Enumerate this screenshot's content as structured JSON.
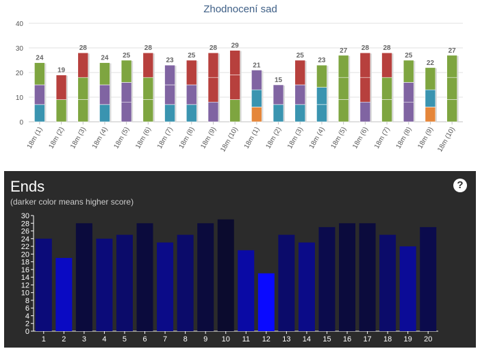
{
  "chart_data": [
    {
      "type": "bar",
      "stacked": true,
      "title": "Zhodnocení sad",
      "ylim": [
        0,
        40
      ],
      "yticks": [
        0,
        10,
        20,
        30,
        40
      ],
      "grid": true,
      "categories": [
        "18m (1)",
        "18m (2)",
        "18m (3)",
        "18m (4)",
        "18m (5)",
        "18m (6)",
        "18m (7)",
        "18m (8)",
        "18m (9)",
        "18m (10)",
        "18m (1)",
        "18m (2)",
        "18m (3)",
        "18m (4)",
        "18m (5)",
        "18m (6)",
        "18m (7)",
        "18m (8)",
        "18m (9)",
        "18m (10)"
      ],
      "totals": [
        24,
        19,
        28,
        24,
        25,
        28,
        23,
        25,
        28,
        29,
        21,
        15,
        25,
        23,
        27,
        28,
        28,
        25,
        22,
        27
      ],
      "segments": [
        [
          {
            "value": 7,
            "color": "#3a94b0"
          },
          {
            "value": 8,
            "color": "#8064a2"
          },
          {
            "value": 9,
            "color": "#7ea540"
          }
        ],
        [
          {
            "value": 9,
            "color": "#7ea540"
          },
          {
            "value": 10,
            "color": "#b7403d"
          }
        ],
        [
          {
            "value": 9,
            "color": "#7ea540"
          },
          {
            "value": 9,
            "color": "#7ea540"
          },
          {
            "value": 10,
            "color": "#b7403d"
          }
        ],
        [
          {
            "value": 7,
            "color": "#3a94b0"
          },
          {
            "value": 8,
            "color": "#8064a2"
          },
          {
            "value": 9,
            "color": "#7ea540"
          }
        ],
        [
          {
            "value": 8,
            "color": "#8064a2"
          },
          {
            "value": 8,
            "color": "#8064a2"
          },
          {
            "value": 9,
            "color": "#7ea540"
          }
        ],
        [
          {
            "value": 9,
            "color": "#7ea540"
          },
          {
            "value": 9,
            "color": "#7ea540"
          },
          {
            "value": 10,
            "color": "#b7403d"
          }
        ],
        [
          {
            "value": 7,
            "color": "#3a94b0"
          },
          {
            "value": 8,
            "color": "#8064a2"
          },
          {
            "value": 8,
            "color": "#8064a2"
          }
        ],
        [
          {
            "value": 7,
            "color": "#3a94b0"
          },
          {
            "value": 8,
            "color": "#8064a2"
          },
          {
            "value": 10,
            "color": "#b7403d"
          }
        ],
        [
          {
            "value": 8,
            "color": "#8064a2"
          },
          {
            "value": 10,
            "color": "#b7403d"
          },
          {
            "value": 10,
            "color": "#b7403d"
          }
        ],
        [
          {
            "value": 9,
            "color": "#7ea540"
          },
          {
            "value": 10,
            "color": "#b7403d"
          },
          {
            "value": 10,
            "color": "#b7403d"
          }
        ],
        [
          {
            "value": 6,
            "color": "#e5863a"
          },
          {
            "value": 7,
            "color": "#3a94b0"
          },
          {
            "value": 8,
            "color": "#8064a2"
          }
        ],
        [
          {
            "value": 7,
            "color": "#3a94b0"
          },
          {
            "value": 8,
            "color": "#8064a2"
          }
        ],
        [
          {
            "value": 7,
            "color": "#3a94b0"
          },
          {
            "value": 8,
            "color": "#8064a2"
          },
          {
            "value": 10,
            "color": "#b7403d"
          }
        ],
        [
          {
            "value": 7,
            "color": "#3a94b0"
          },
          {
            "value": 7,
            "color": "#3a94b0"
          },
          {
            "value": 9,
            "color": "#7ea540"
          }
        ],
        [
          {
            "value": 9,
            "color": "#7ea540"
          },
          {
            "value": 9,
            "color": "#7ea540"
          },
          {
            "value": 9,
            "color": "#7ea540"
          }
        ],
        [
          {
            "value": 8,
            "color": "#8064a2"
          },
          {
            "value": 10,
            "color": "#b7403d"
          },
          {
            "value": 10,
            "color": "#b7403d"
          }
        ],
        [
          {
            "value": 9,
            "color": "#7ea540"
          },
          {
            "value": 9,
            "color": "#7ea540"
          },
          {
            "value": 10,
            "color": "#b7403d"
          }
        ],
        [
          {
            "value": 8,
            "color": "#8064a2"
          },
          {
            "value": 8,
            "color": "#8064a2"
          },
          {
            "value": 9,
            "color": "#7ea540"
          }
        ],
        [
          {
            "value": 6,
            "color": "#e5863a"
          },
          {
            "value": 7,
            "color": "#3a94b0"
          },
          {
            "value": 9,
            "color": "#7ea540"
          }
        ],
        [
          {
            "value": 9,
            "color": "#7ea540"
          },
          {
            "value": 9,
            "color": "#7ea540"
          },
          {
            "value": 9,
            "color": "#7ea540"
          }
        ]
      ]
    },
    {
      "type": "bar",
      "title": "Ends",
      "subtitle": "(darker color means higher score)",
      "categories": [
        "1",
        "2",
        "3",
        "4",
        "5",
        "6",
        "7",
        "8",
        "9",
        "10",
        "11",
        "12",
        "13",
        "14",
        "15",
        "16",
        "17",
        "18",
        "19",
        "20"
      ],
      "values": [
        24,
        19,
        28,
        24,
        25,
        28,
        23,
        25,
        28,
        29,
        21,
        15,
        25,
        23,
        27,
        28,
        28,
        25,
        22,
        27
      ],
      "ylim": [
        0,
        30
      ],
      "yticks": [
        0,
        2,
        4,
        6,
        8,
        10,
        12,
        14,
        16,
        18,
        20,
        22,
        24,
        26,
        28,
        30
      ],
      "grid": false,
      "background": "#2b2b2b",
      "color_scale": [
        "#0b0b2e",
        "#0a0aff"
      ]
    }
  ],
  "help_label": "?"
}
